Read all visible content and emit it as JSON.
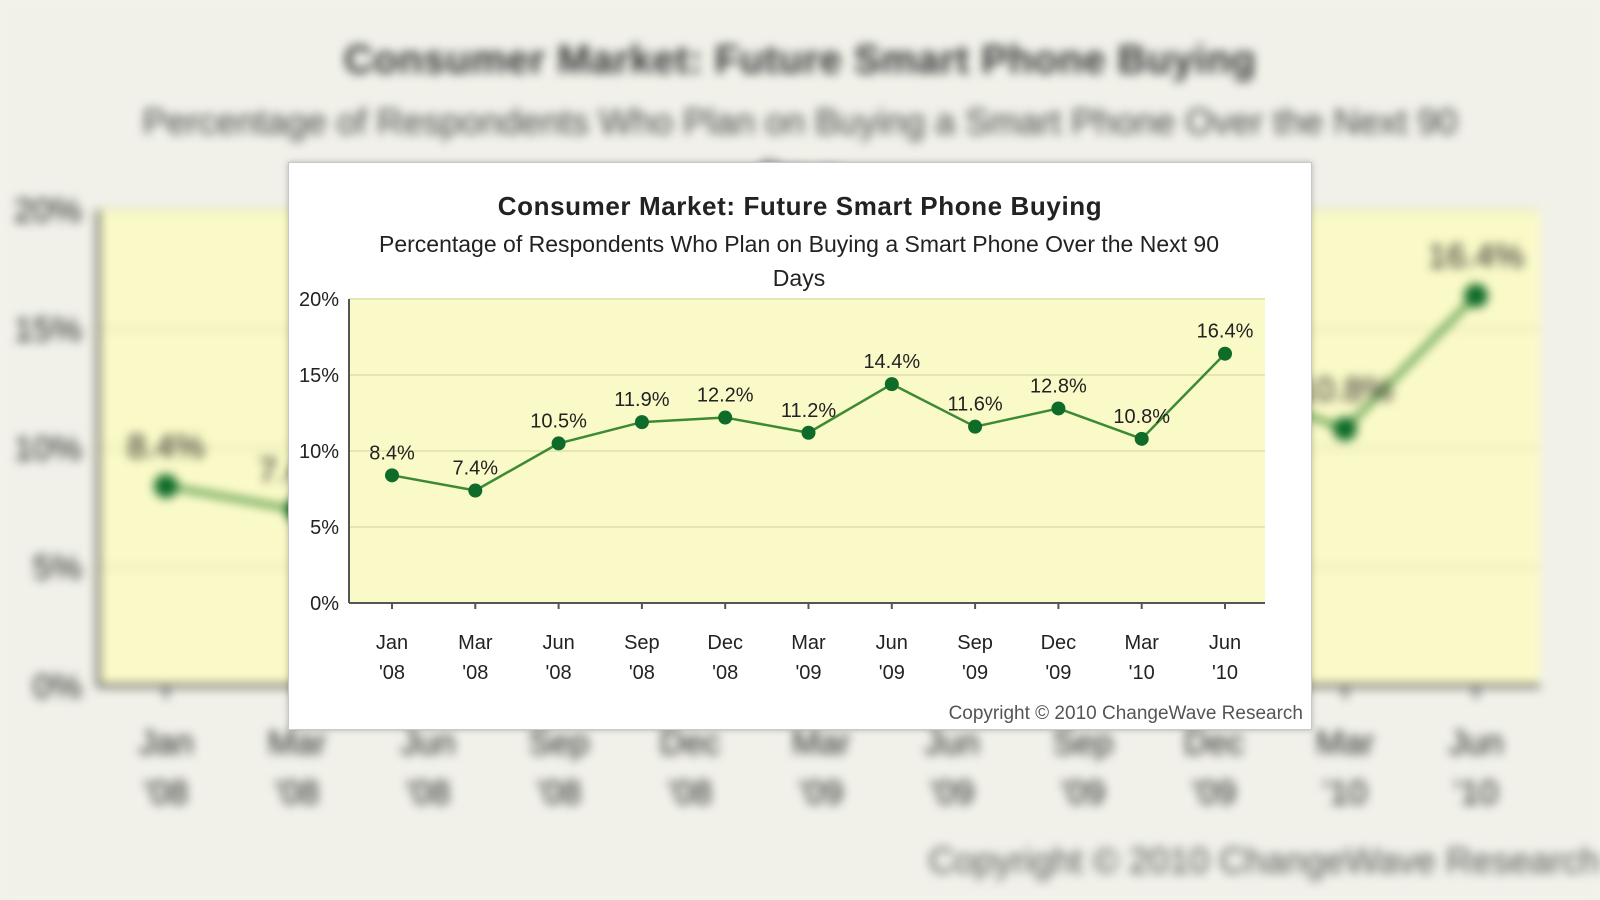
{
  "chart_data": {
    "type": "line",
    "title": "Consumer Market: Future Smart Phone Buying",
    "subtitle": "Percentage of Respondents Who Plan on Buying a Smart Phone Over the Next 90 Days",
    "categories": [
      [
        "Jan",
        "'08"
      ],
      [
        "Mar",
        "'08"
      ],
      [
        "Jun",
        "'08"
      ],
      [
        "Sep",
        "'08"
      ],
      [
        "Dec",
        "'08"
      ],
      [
        "Mar",
        "'09"
      ],
      [
        "Jun",
        "'09"
      ],
      [
        "Sep",
        "'09"
      ],
      [
        "Dec",
        "'09"
      ],
      [
        "Mar",
        "'10"
      ],
      [
        "Jun",
        "'10"
      ]
    ],
    "values": [
      8.4,
      7.4,
      10.5,
      11.9,
      12.2,
      11.2,
      14.4,
      11.6,
      12.8,
      10.8,
      16.4
    ],
    "data_labels": [
      "8.4%",
      "7.4%",
      "10.5%",
      "11.9%",
      "12.2%",
      "11.2%",
      "14.4%",
      "11.6%",
      "12.8%",
      "10.8%",
      "16.4%"
    ],
    "y_ticks": [
      "0%",
      "5%",
      "10%",
      "15%",
      "20%"
    ],
    "y_tick_values": [
      0,
      5,
      10,
      15,
      20
    ],
    "ylim": [
      0,
      20
    ],
    "grid": true,
    "legend": "none",
    "copyright": "Copyright © 2010 ChangeWave Research"
  },
  "colors": {
    "plot_background": "#fafac8",
    "line": "#3d8a34",
    "marker": "#0e6b28",
    "gridline": "#e6e6b4",
    "axis": "#555555"
  }
}
